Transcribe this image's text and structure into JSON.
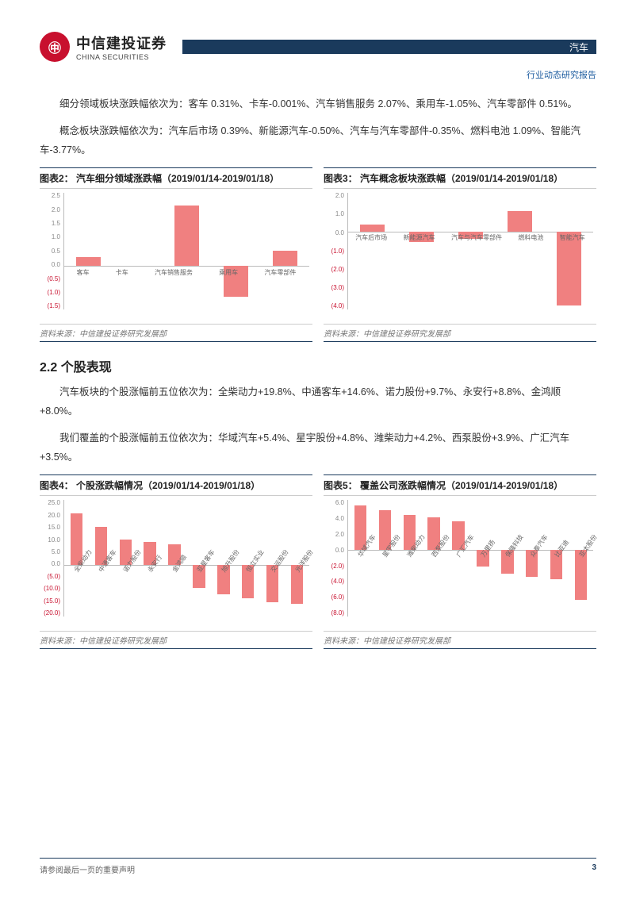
{
  "header": {
    "logo_glyph": "㊥",
    "logo_cn": "中信建投证券",
    "logo_en": "CHINA SECURITIES",
    "bar_label": "汽车",
    "sub": "行业动态研究报告"
  },
  "para1": "细分领域板块涨跌幅依次为：客车 0.31%、卡车-0.001%、汽车销售服务 2.07%、乘用车-1.05%、汽车零部件 0.51%。",
  "para2": "概念板块涨跌幅依次为：汽车后市场 0.39%、新能源汽车-0.50%、汽车与汽车零部件-0.35%、燃料电池 1.09%、智能汽车-3.77%。",
  "chart2": {
    "title": "图表2：  汽车细分领域涨跌幅（2019/01/14-2019/01/18）",
    "source": "资料来源：中信建投证券研究发展部",
    "yticks": [
      "2.5",
      "2.0",
      "1.5",
      "1.0",
      "0.5",
      "0.0",
      "(0.5)",
      "(1.0)",
      "(1.5)"
    ],
    "ylim_top": 2.5,
    "ylim_bot": -1.5,
    "cats": [
      "客车",
      "卡车",
      "汽车销售服务",
      "乘用车",
      "汽车零部件"
    ],
    "vals": [
      0.31,
      -0.001,
      2.07,
      -1.05,
      0.51
    ],
    "bar_color": "#f08080"
  },
  "chart3": {
    "title": "图表3：  汽车概念板块涨跌幅（2019/01/14-2019/01/18）",
    "source": "资料来源：中信建投证券研究发展部",
    "yticks": [
      "2.0",
      "1.0",
      "0.0",
      "(1.0)",
      "(2.0)",
      "(3.0)",
      "(4.0)"
    ],
    "ylim_top": 2.0,
    "ylim_bot": -4.0,
    "cats": [
      "汽车后市场",
      "新能源汽车",
      "汽车与汽车零部件",
      "燃料电池",
      "智能汽车"
    ],
    "vals": [
      0.39,
      -0.5,
      -0.35,
      1.09,
      -3.77
    ],
    "bar_color": "#f08080"
  },
  "section22": "2.2 个股表现",
  "para3": "汽车板块的个股涨幅前五位依次为：全柴动力+19.8%、中通客车+14.6%、诺力股份+9.7%、永安行+8.8%、金鸿顺+8.0%。",
  "para4": "我们覆盖的个股涨幅前五位依次为：华域汽车+5.4%、星宇股份+4.8%、潍柴动力+4.2%、西泵股份+3.9%、广汇汽车+3.5%。",
  "chart4": {
    "title": "图表4：  个股涨跌幅情况（2019/01/14-2019/01/18）",
    "source": "资料来源：中信建投证券研究发展部",
    "yticks": [
      "25.0",
      "20.0",
      "15.0",
      "10.0",
      "5.0",
      "0.0",
      "(5.0)",
      "(10.0)",
      "(15.0)",
      "(20.0)"
    ],
    "ylim_top": 25.0,
    "ylim_bot": -20.0,
    "cats": [
      "全柴动力",
      "中通客车",
      "诺力股份",
      "永安行",
      "金鸿顺",
      "亚星客车",
      "旭升股份",
      "恒立实业",
      "交运股份",
      "光洋股份"
    ],
    "vals": [
      19.8,
      14.6,
      9.7,
      8.8,
      8.0,
      -9.0,
      -11.5,
      -13.0,
      -14.5,
      -15.0
    ],
    "bar_color": "#f08080"
  },
  "chart5": {
    "title": "图表5：  覆盖公司涨跌幅情况（2019/01/14-2019/01/18）",
    "source": "资料来源：中信建投证券研究发展部",
    "yticks": [
      "6.0",
      "4.0",
      "2.0",
      "0.0",
      "(2.0)",
      "(4.0)",
      "(6.0)",
      "(8.0)"
    ],
    "ylim_top": 6.0,
    "ylim_bot": -8.0,
    "cats": [
      "华域汽车",
      "星宇股份",
      "潍柴动力",
      "西泵股份",
      "广汇汽车",
      "万里扬",
      "保隆科技",
      "众泰汽车",
      "比亚迪",
      "亚太股份"
    ],
    "vals": [
      5.4,
      4.8,
      4.2,
      3.9,
      3.5,
      -2.0,
      -2.8,
      -3.2,
      -3.5,
      -6.0
    ],
    "bar_color": "#f08080"
  },
  "footer": {
    "note": "请参阅最后一页的重要声明",
    "page": "3"
  }
}
